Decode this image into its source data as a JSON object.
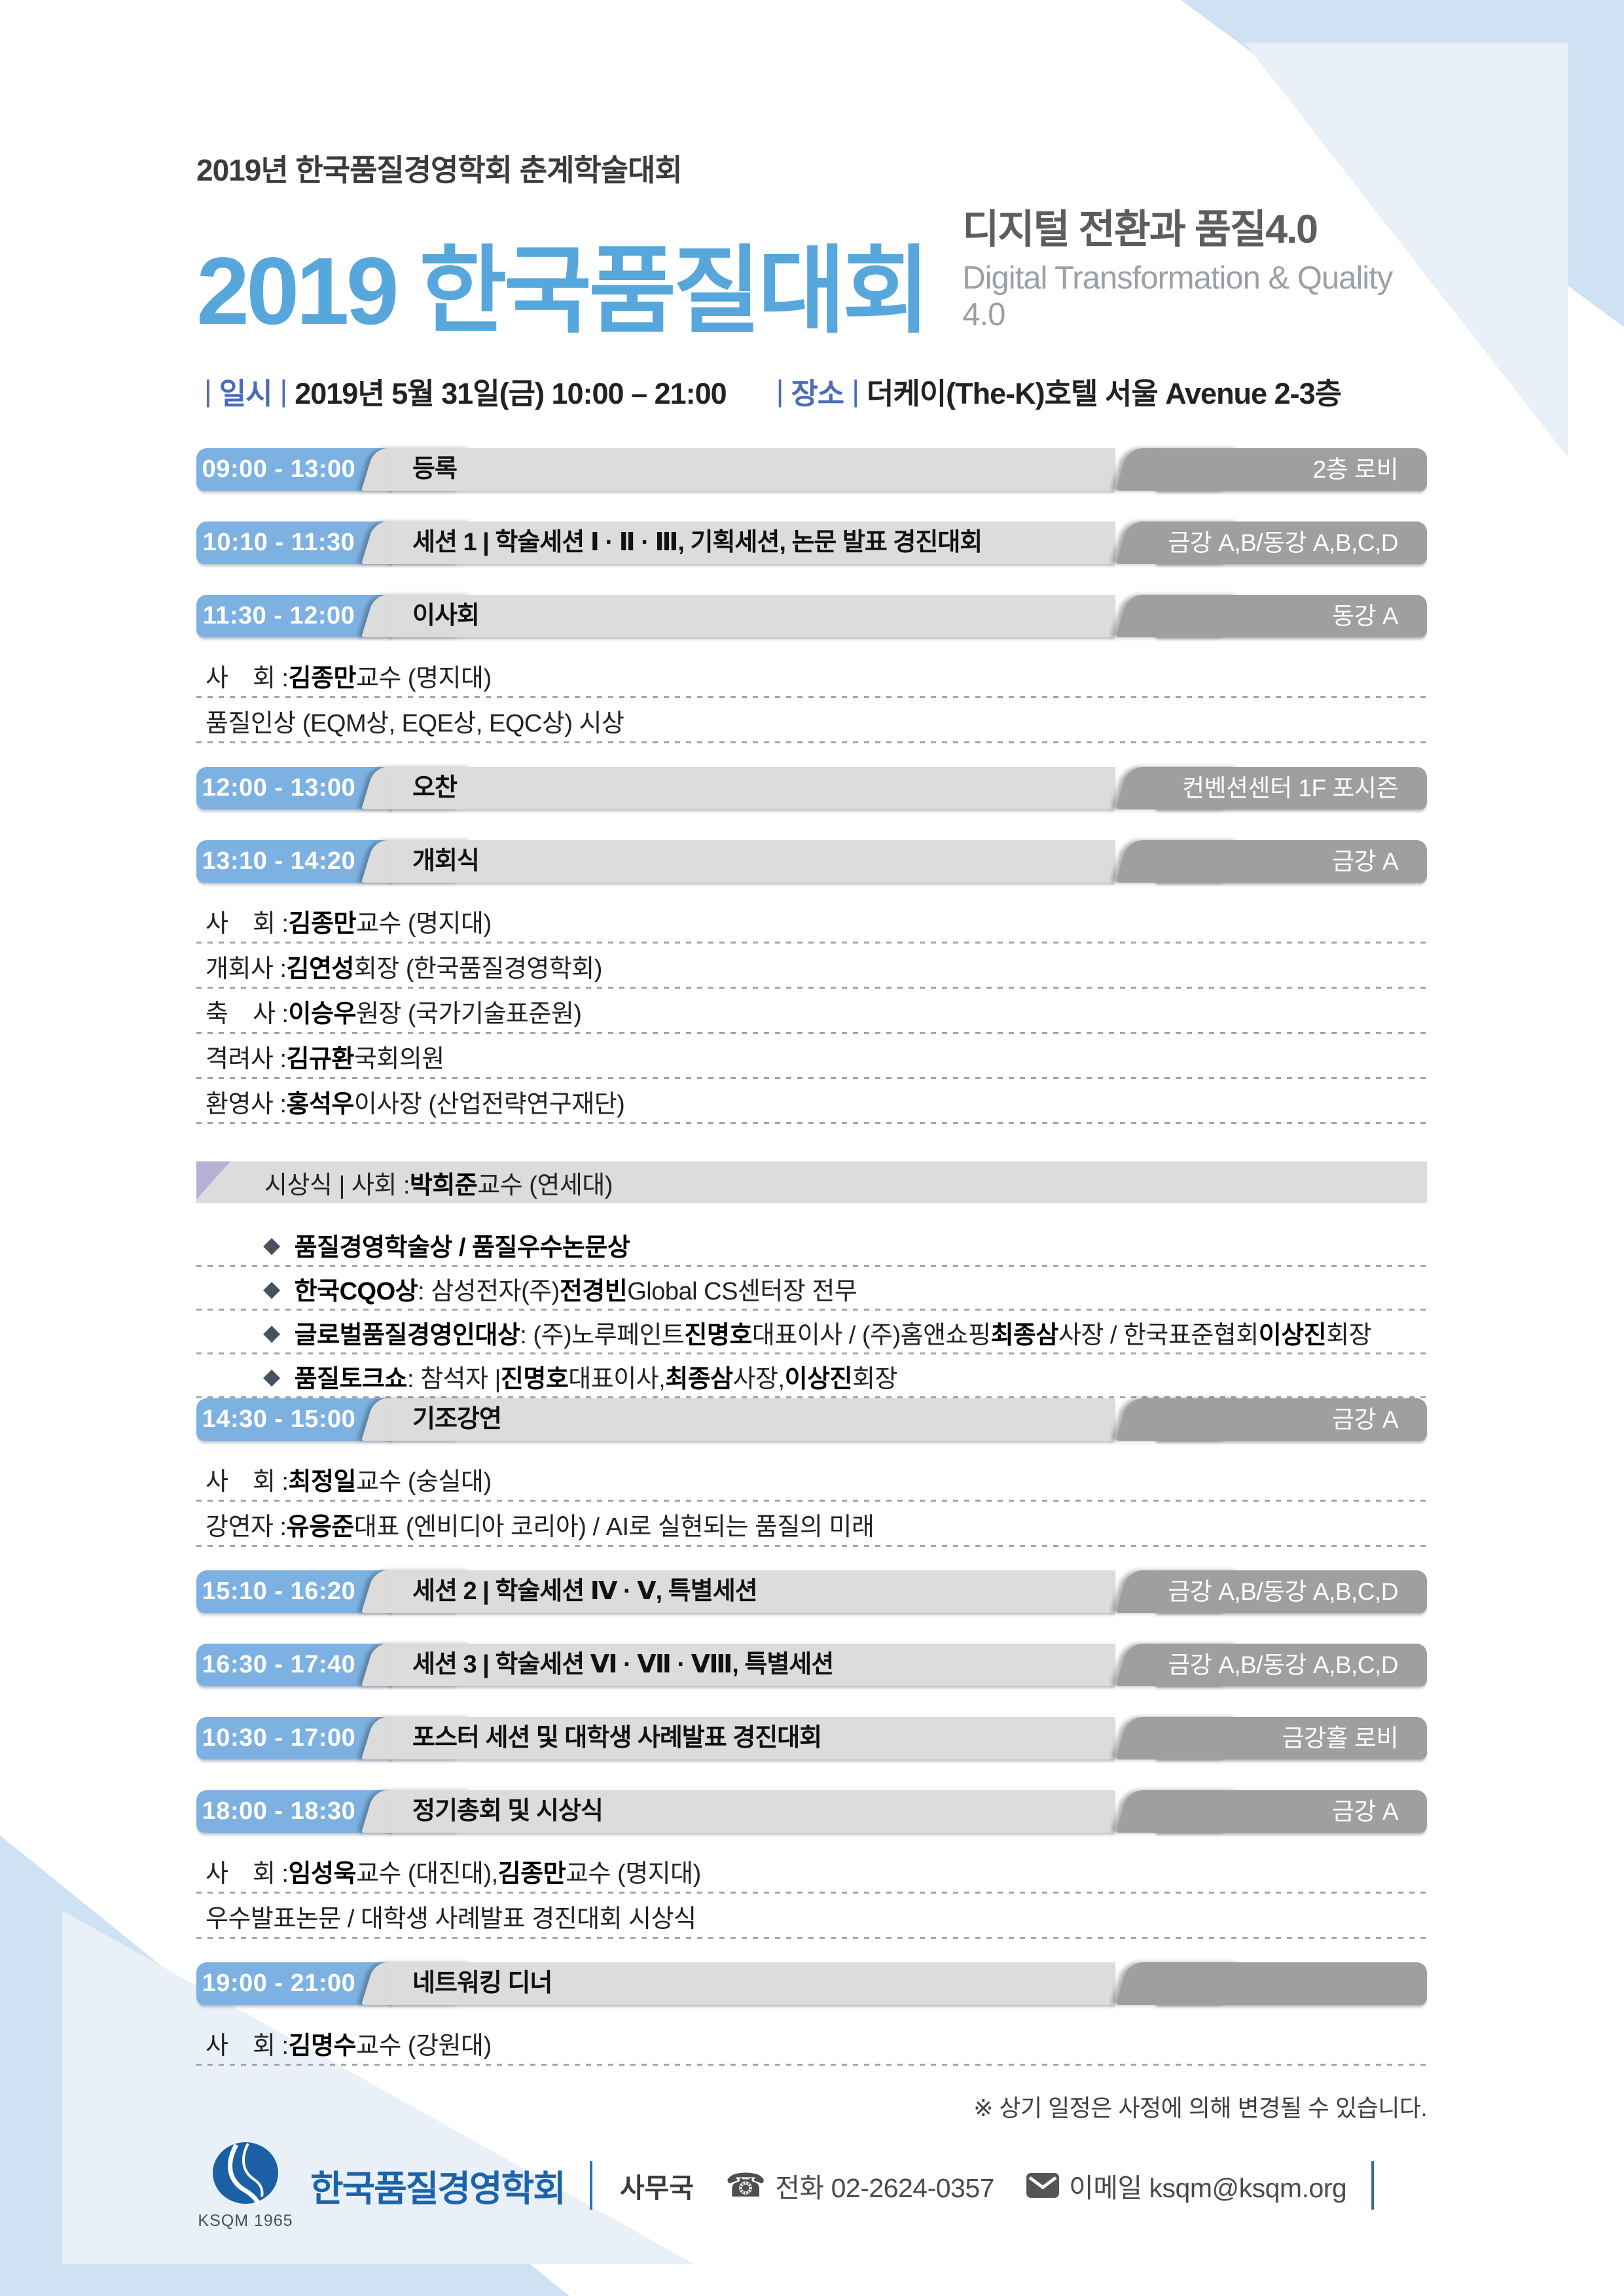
{
  "header": {
    "pre_title": "2019년 한국품질경영학회 춘계학술대회",
    "title": "2019 한국품질대회",
    "subtitle_ko": "디지털 전환과 품질4.0",
    "subtitle_en": "Digital Transformation & Quality 4.0",
    "date_label": "일시",
    "date_value": "2019년 5월 31일(금) 10:00 – 21:00",
    "venue_label": "장소",
    "venue_value": "더케이(The-K)호텔 서울 Avenue 2-3층"
  },
  "icons": {
    "diamond": "◆",
    "phone": "☎",
    "mail": "envelope-icon"
  },
  "colors": {
    "time_chip_blue": "#7cb1e1",
    "title_blue": "#57a7dc",
    "label_blue": "#4a6cbd",
    "mid_gray": "#dcdcdc",
    "room_gray": "#9f9f9f",
    "award_purple": "#b6b0d5",
    "logo_blue": "#1b5fa5",
    "deco_blue_outer": "#cfe2f4",
    "deco_blue_inner": "#e9f0f8"
  },
  "schedule": [
    {
      "type": "bar",
      "time": "09:00 - 13:00",
      "title": "등록",
      "room": "2층 로비"
    },
    {
      "type": "bar",
      "time": "10:10 - 11:30",
      "title": "세션 1 | 학술세션 Ⅰ · Ⅱ · Ⅲ, 기획세션, 논문 발표 경진대회",
      "room": "금강 A,B/동강 A,B,C,D"
    },
    {
      "type": "bar",
      "time": "11:30 - 12:00",
      "title": "이사회",
      "room": "동강 A"
    },
    {
      "type": "details",
      "lines": [
        [
          [
            "사　회 : ",
            0
          ],
          [
            "김종만",
            1
          ],
          [
            " 교수 (명지대)",
            0
          ]
        ],
        [
          [
            "품질인상 (EQM상, EQE상, EQC상) 시상",
            0
          ]
        ]
      ]
    },
    {
      "type": "bar",
      "time": "12:00 - 13:00",
      "title": "오찬",
      "room": "컨벤션센터 1F 포시즌"
    },
    {
      "type": "bar",
      "time": "13:10 - 14:20",
      "title": "개회식",
      "room": "금강 A"
    },
    {
      "type": "details",
      "lines": [
        [
          [
            "사　회 : ",
            0
          ],
          [
            "김종만",
            1
          ],
          [
            " 교수 (명지대)",
            0
          ]
        ],
        [
          [
            "개회사 : ",
            0
          ],
          [
            "김연성",
            1
          ],
          [
            " 회장 (한국품질경영학회)",
            0
          ]
        ],
        [
          [
            "축　사 : ",
            0
          ],
          [
            "이승우",
            1
          ],
          [
            " 원장 (국가기술표준원)",
            0
          ]
        ],
        [
          [
            "격려사 : ",
            0
          ],
          [
            "김규환",
            1
          ],
          [
            " 국회의원",
            0
          ]
        ],
        [
          [
            "환영사 : ",
            0
          ],
          [
            "홍석우",
            1
          ],
          [
            " 이사장 (산업전략연구재단)",
            0
          ]
        ]
      ]
    },
    {
      "type": "award",
      "segs": [
        [
          "시상식  |  사회 : ",
          0
        ],
        [
          "박희준",
          1
        ],
        [
          " 교수 (연세대)",
          0
        ]
      ]
    },
    {
      "type": "bullets",
      "lines": [
        [
          [
            "품질경영학술상 / 품질우수논문상",
            1
          ]
        ],
        [
          [
            "한국CQO상",
            1
          ],
          [
            " : 삼성전자(주) ",
            0
          ],
          [
            "전경빈",
            1
          ],
          [
            " Global CS센터장 전무",
            0
          ]
        ],
        [
          [
            "글로벌품질경영인대상",
            1
          ],
          [
            " : (주)노루페인트 ",
            0
          ],
          [
            "진명호",
            1
          ],
          [
            " 대표이사 / (주)홈앤쇼핑 ",
            0
          ],
          [
            "최종삼",
            1
          ],
          [
            " 사장 / 한국표준협회 ",
            0
          ],
          [
            "이상진",
            1
          ],
          [
            " 회장",
            0
          ]
        ],
        [
          [
            "품질토크쇼",
            1
          ],
          [
            " : 참석자 | ",
            0
          ],
          [
            "진명호",
            1
          ],
          [
            " 대표이사, ",
            0
          ],
          [
            "최종삼",
            1
          ],
          [
            " 사장, ",
            0
          ],
          [
            "이상진",
            1
          ],
          [
            " 회장",
            0
          ]
        ]
      ]
    },
    {
      "type": "bar",
      "time": "14:30 - 15:00",
      "title": "기조강연",
      "room": "금강 A"
    },
    {
      "type": "details",
      "lines": [
        [
          [
            "사　회 : ",
            0
          ],
          [
            "최정일",
            1
          ],
          [
            " 교수 (숭실대)",
            0
          ]
        ],
        [
          [
            "강연자 : ",
            0
          ],
          [
            "유응준",
            1
          ],
          [
            " 대표 (엔비디아 코리아) / AI로 실현되는 품질의 미래",
            0
          ]
        ]
      ]
    },
    {
      "type": "bar",
      "time": "15:10 - 16:20",
      "title": "세션 2 | 학술세션 Ⅳ · Ⅴ, 특별세션",
      "room": "금강 A,B/동강 A,B,C,D"
    },
    {
      "type": "bar",
      "time": "16:30 - 17:40",
      "title": "세션 3 | 학술세션 Ⅵ · Ⅶ · Ⅷ, 특별세션",
      "room": "금강 A,B/동강 A,B,C,D"
    },
    {
      "type": "bar",
      "time": "10:30 - 17:00",
      "title": "포스터 세션 및 대학생 사례발표 경진대회",
      "room": "금강홀 로비"
    },
    {
      "type": "bar",
      "time": "18:00 - 18:30",
      "title": "정기총회 및 시상식",
      "room": "금강 A"
    },
    {
      "type": "details",
      "lines": [
        [
          [
            "사　회 : ",
            0
          ],
          [
            "임성욱",
            1
          ],
          [
            " 교수 (대진대), ",
            0
          ],
          [
            "김종만",
            1
          ],
          [
            " 교수 (명지대)",
            0
          ]
        ],
        [
          [
            "우수발표논문 / 대학생 사례발표 경진대회 시상식",
            0
          ]
        ]
      ]
    },
    {
      "type": "bar",
      "time": "19:00 - 21:00",
      "title": "네트워킹 디너",
      "room": ""
    },
    {
      "type": "details",
      "lines": [
        [
          [
            "사　회 : ",
            0
          ],
          [
            "김명수",
            1
          ],
          [
            " 교수 (강원대)",
            0
          ]
        ]
      ]
    }
  ],
  "note": "※ 상기 일정은 사정에 의해 변경될 수 있습니다.",
  "footer": {
    "logo_caption": "KSQM 1965",
    "org_name": "한국품질경영학회",
    "office_label": "사무국",
    "phone_label": "전화",
    "phone_value": "02-2624-0357",
    "email_label": "이메일",
    "email_value": "ksqm@ksqm.org"
  }
}
